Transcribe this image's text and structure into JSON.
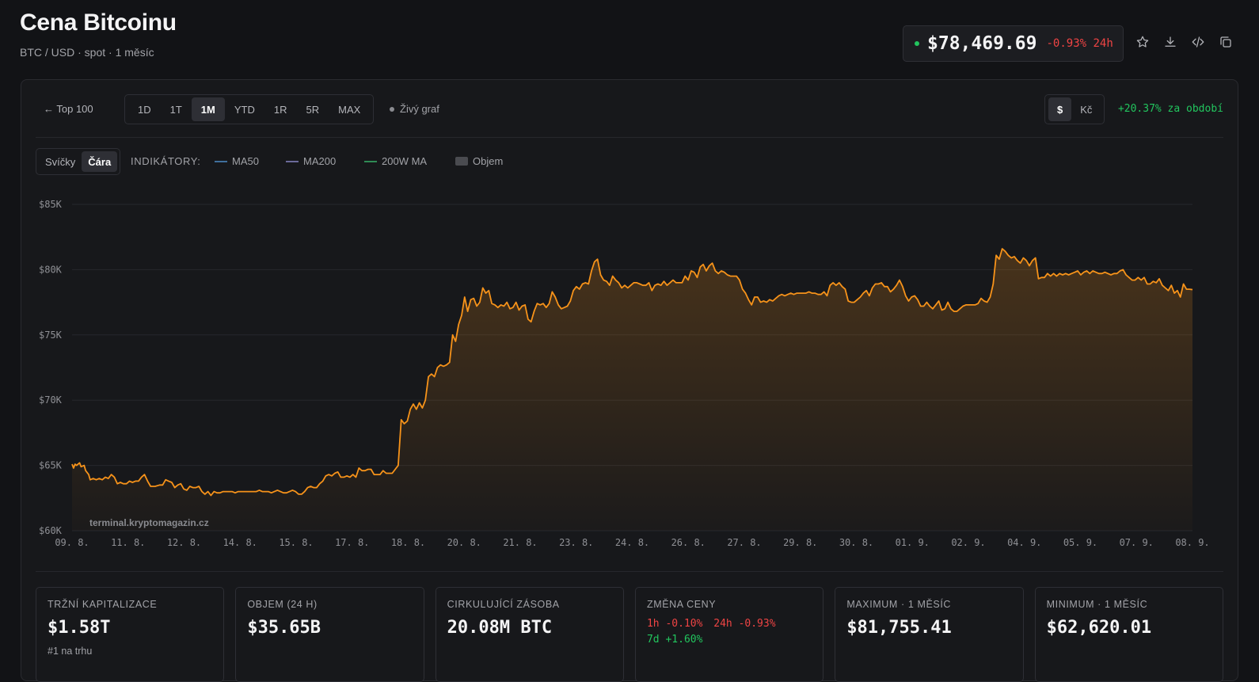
{
  "header": {
    "title": "Cena Bitcoinu",
    "subtitle": "BTC / USD · spot · 1 měsíc"
  },
  "price": {
    "value": "$78,469.69",
    "change": "-0.93% 24h"
  },
  "toolbar": {
    "back": "← Top 100",
    "ranges": [
      "1D",
      "1T",
      "1M",
      "YTD",
      "1R",
      "5R",
      "MAX"
    ],
    "active_range": "1M",
    "live": "Živý graf",
    "currencies": [
      "$",
      "Kč"
    ],
    "active_currency": "$",
    "period_change": "+20.37% za období"
  },
  "chart_toolbar": {
    "types": [
      "Svíčky",
      "Čára"
    ],
    "active_type": "Čára",
    "indicators_label": "INDIKÁTORY:",
    "indicators": [
      {
        "name": "MA50",
        "color": "#3f6f9c"
      },
      {
        "name": "MA200",
        "color": "#6b6a9a"
      },
      {
        "name": "200W MA",
        "color": "#2f8a55"
      },
      {
        "name": "Objem",
        "color": "#4a4b50"
      }
    ]
  },
  "chart_data": {
    "type": "area",
    "line_color": "#f7931a",
    "watermark": "terminal.kryptomagazin.cz",
    "y_ticks": [
      "$85K",
      "$80K",
      "$75K",
      "$70K",
      "$65K",
      "$60K"
    ],
    "ylim": [
      60000,
      85000
    ],
    "x_ticks": [
      "09. 8.",
      "11. 8.",
      "12. 8.",
      "14. 8.",
      "15. 8.",
      "17. 8.",
      "18. 8.",
      "20. 8.",
      "21. 8.",
      "23. 8.",
      "24. 8.",
      "26. 8.",
      "27. 8.",
      "29. 8.",
      "30. 8.",
      "01. 9.",
      "02. 9.",
      "04. 9.",
      "05. 9.",
      "07. 9.",
      "08. 9."
    ],
    "grid": true,
    "points": [
      [
        0,
        65100
      ],
      [
        1,
        64800
      ],
      [
        2,
        65100
      ],
      [
        3,
        65000
      ],
      [
        5,
        65200
      ],
      [
        6,
        64900
      ],
      [
        8,
        65000
      ],
      [
        9,
        64600
      ],
      [
        11,
        64300
      ],
      [
        12,
        63900
      ],
      [
        14,
        64000
      ],
      [
        16,
        63900
      ],
      [
        18,
        64000
      ],
      [
        20,
        63900
      ],
      [
        22,
        64100
      ],
      [
        24,
        64000
      ],
      [
        26,
        64300
      ],
      [
        28,
        64100
      ],
      [
        30,
        63600
      ],
      [
        32,
        63700
      ],
      [
        34,
        63600
      ],
      [
        36,
        63600
      ],
      [
        38,
        63800
      ],
      [
        40,
        63700
      ],
      [
        42,
        63800
      ],
      [
        44,
        63800
      ],
      [
        46,
        64100
      ],
      [
        48,
        64300
      ],
      [
        50,
        63800
      ],
      [
        52,
        63400
      ],
      [
        55,
        63400
      ],
      [
        58,
        63500
      ],
      [
        60,
        63500
      ],
      [
        62,
        63900
      ],
      [
        64,
        63800
      ],
      [
        66,
        63700
      ],
      [
        68,
        63300
      ],
      [
        70,
        63500
      ],
      [
        72,
        63600
      ],
      [
        74,
        63200
      ],
      [
        76,
        63100
      ],
      [
        78,
        63400
      ],
      [
        80,
        63300
      ],
      [
        82,
        63300
      ],
      [
        84,
        63400
      ],
      [
        86,
        63000
      ],
      [
        88,
        62800
      ],
      [
        90,
        63000
      ],
      [
        92,
        62700
      ],
      [
        94,
        63000
      ],
      [
        96,
        62900
      ],
      [
        98,
        62900
      ],
      [
        100,
        63000
      ],
      [
        102,
        63000
      ],
      [
        104,
        63000
      ],
      [
        106,
        63000
      ],
      [
        108,
        62900
      ],
      [
        110,
        63000
      ],
      [
        112,
        63000
      ],
      [
        114,
        63000
      ],
      [
        116,
        63000
      ],
      [
        118,
        63000
      ],
      [
        120,
        63000
      ],
      [
        122,
        63000
      ],
      [
        124,
        63100
      ],
      [
        126,
        63000
      ],
      [
        128,
        63000
      ],
      [
        130,
        63000
      ],
      [
        132,
        62900
      ],
      [
        134,
        63000
      ],
      [
        136,
        63100
      ],
      [
        138,
        63000
      ],
      [
        140,
        62900
      ],
      [
        142,
        62900
      ],
      [
        144,
        63000
      ],
      [
        146,
        63100
      ],
      [
        148,
        63000
      ],
      [
        150,
        62800
      ],
      [
        152,
        62800
      ],
      [
        154,
        63000
      ],
      [
        156,
        63300
      ],
      [
        158,
        63400
      ],
      [
        160,
        63300
      ],
      [
        162,
        63300
      ],
      [
        164,
        63600
      ],
      [
        166,
        63800
      ],
      [
        168,
        64200
      ],
      [
        170,
        64300
      ],
      [
        172,
        64200
      ],
      [
        174,
        64400
      ],
      [
        176,
        64500
      ],
      [
        178,
        64100
      ],
      [
        180,
        64100
      ],
      [
        182,
        64200
      ],
      [
        184,
        64100
      ],
      [
        186,
        64300
      ],
      [
        188,
        64100
      ],
      [
        190,
        64800
      ],
      [
        192,
        64600
      ],
      [
        194,
        64600
      ],
      [
        196,
        64700
      ],
      [
        198,
        64700
      ],
      [
        200,
        64300
      ],
      [
        202,
        64300
      ],
      [
        204,
        64300
      ],
      [
        206,
        64600
      ],
      [
        208,
        64400
      ],
      [
        210,
        64400
      ],
      [
        212,
        64400
      ],
      [
        214,
        64700
      ],
      [
        216,
        65000
      ],
      [
        218,
        68500
      ],
      [
        220,
        68200
      ],
      [
        222,
        68400
      ],
      [
        224,
        69300
      ],
      [
        226,
        69700
      ],
      [
        228,
        69300
      ],
      [
        230,
        69800
      ],
      [
        232,
        69400
      ],
      [
        234,
        70000
      ],
      [
        236,
        71800
      ],
      [
        238,
        72000
      ],
      [
        240,
        71800
      ],
      [
        242,
        72500
      ],
      [
        244,
        72700
      ],
      [
        246,
        72600
      ],
      [
        248,
        72700
      ],
      [
        250,
        72900
      ],
      [
        252,
        75000
      ],
      [
        254,
        74500
      ],
      [
        256,
        75800
      ],
      [
        258,
        76500
      ],
      [
        260,
        77900
      ],
      [
        262,
        76800
      ],
      [
        264,
        77700
      ],
      [
        266,
        77800
      ],
      [
        268,
        77200
      ],
      [
        270,
        77500
      ],
      [
        272,
        78600
      ],
      [
        274,
        78200
      ],
      [
        276,
        78400
      ],
      [
        278,
        77400
      ],
      [
        280,
        77300
      ],
      [
        282,
        77100
      ],
      [
        284,
        77300
      ],
      [
        286,
        77200
      ],
      [
        288,
        77500
      ],
      [
        290,
        77000
      ],
      [
        292,
        77100
      ],
      [
        294,
        77500
      ],
      [
        296,
        76900
      ],
      [
        298,
        77200
      ],
      [
        300,
        77300
      ],
      [
        302,
        76200
      ],
      [
        304,
        76000
      ],
      [
        306,
        76800
      ],
      [
        308,
        77400
      ],
      [
        310,
        77300
      ],
      [
        312,
        77400
      ],
      [
        314,
        77100
      ],
      [
        316,
        77400
      ],
      [
        318,
        78300
      ],
      [
        320,
        77900
      ],
      [
        322,
        77300
      ],
      [
        324,
        77000
      ],
      [
        326,
        77100
      ],
      [
        328,
        77200
      ],
      [
        330,
        77600
      ],
      [
        332,
        78400
      ],
      [
        334,
        78700
      ],
      [
        336,
        78500
      ],
      [
        338,
        78900
      ],
      [
        340,
        79000
      ],
      [
        342,
        78900
      ],
      [
        344,
        79900
      ],
      [
        346,
        80600
      ],
      [
        348,
        80800
      ],
      [
        350,
        79600
      ],
      [
        352,
        79200
      ],
      [
        354,
        79100
      ],
      [
        356,
        78800
      ],
      [
        358,
        79500
      ],
      [
        360,
        79200
      ],
      [
        362,
        79000
      ],
      [
        364,
        78600
      ],
      [
        366,
        78800
      ],
      [
        368,
        78600
      ],
      [
        370,
        78800
      ],
      [
        372,
        79000
      ],
      [
        374,
        79000
      ],
      [
        376,
        78900
      ],
      [
        378,
        78800
      ],
      [
        380,
        78800
      ],
      [
        382,
        79000
      ],
      [
        384,
        78400
      ],
      [
        386,
        78800
      ],
      [
        388,
        78900
      ],
      [
        390,
        78800
      ],
      [
        392,
        79100
      ],
      [
        394,
        78800
      ],
      [
        396,
        79000
      ],
      [
        398,
        79200
      ],
      [
        400,
        79000
      ],
      [
        402,
        79000
      ],
      [
        404,
        79000
      ],
      [
        406,
        79500
      ],
      [
        408,
        79200
      ],
      [
        410,
        79900
      ],
      [
        412,
        79800
      ],
      [
        414,
        79400
      ],
      [
        416,
        80200
      ],
      [
        418,
        80400
      ],
      [
        420,
        79900
      ],
      [
        422,
        80300
      ],
      [
        424,
        80500
      ],
      [
        426,
        79900
      ],
      [
        428,
        79700
      ],
      [
        430,
        79900
      ],
      [
        432,
        79800
      ],
      [
        434,
        79600
      ],
      [
        436,
        79500
      ],
      [
        438,
        79500
      ],
      [
        440,
        79500
      ],
      [
        442,
        79200
      ],
      [
        444,
        78500
      ],
      [
        446,
        78200
      ],
      [
        448,
        77700
      ],
      [
        450,
        77300
      ],
      [
        452,
        77900
      ],
      [
        454,
        77900
      ],
      [
        456,
        77500
      ],
      [
        458,
        77600
      ],
      [
        460,
        77500
      ],
      [
        462,
        77700
      ],
      [
        464,
        77600
      ],
      [
        466,
        77800
      ],
      [
        468,
        78000
      ],
      [
        470,
        78100
      ],
      [
        472,
        78000
      ],
      [
        474,
        78100
      ],
      [
        476,
        78200
      ],
      [
        478,
        78100
      ],
      [
        480,
        78200
      ],
      [
        482,
        78200
      ],
      [
        484,
        78200
      ],
      [
        486,
        78200
      ],
      [
        488,
        78300
      ],
      [
        490,
        78200
      ],
      [
        492,
        78200
      ],
      [
        494,
        78100
      ],
      [
        496,
        78100
      ],
      [
        498,
        78300
      ],
      [
        500,
        78000
      ],
      [
        502,
        78800
      ],
      [
        504,
        79000
      ],
      [
        506,
        78800
      ],
      [
        508,
        79000
      ],
      [
        510,
        78700
      ],
      [
        512,
        78500
      ],
      [
        514,
        77600
      ],
      [
        516,
        77500
      ],
      [
        518,
        77500
      ],
      [
        520,
        77700
      ],
      [
        522,
        77900
      ],
      [
        524,
        78200
      ],
      [
        526,
        78400
      ],
      [
        528,
        78000
      ],
      [
        530,
        78600
      ],
      [
        532,
        78900
      ],
      [
        534,
        78900
      ],
      [
        536,
        79000
      ],
      [
        538,
        78700
      ],
      [
        540,
        78700
      ],
      [
        542,
        78300
      ],
      [
        544,
        78500
      ],
      [
        546,
        78800
      ],
      [
        548,
        79200
      ],
      [
        550,
        78700
      ],
      [
        552,
        78000
      ],
      [
        554,
        77600
      ],
      [
        556,
        77900
      ],
      [
        558,
        78000
      ],
      [
        560,
        77700
      ],
      [
        562,
        77200
      ],
      [
        564,
        77200
      ],
      [
        566,
        77500
      ],
      [
        568,
        77200
      ],
      [
        570,
        77000
      ],
      [
        572,
        77300
      ],
      [
        574,
        77600
      ],
      [
        576,
        76900
      ],
      [
        578,
        77000
      ],
      [
        580,
        77500
      ],
      [
        582,
        77000
      ],
      [
        584,
        76800
      ],
      [
        586,
        76800
      ],
      [
        588,
        77000
      ],
      [
        590,
        77200
      ],
      [
        592,
        77300
      ],
      [
        594,
        77300
      ],
      [
        596,
        77300
      ],
      [
        598,
        77300
      ],
      [
        600,
        77400
      ],
      [
        602,
        77800
      ],
      [
        604,
        77600
      ],
      [
        606,
        77500
      ],
      [
        608,
        77900
      ],
      [
        610,
        78900
      ],
      [
        612,
        81100
      ],
      [
        614,
        80800
      ],
      [
        616,
        81600
      ],
      [
        618,
        81400
      ],
      [
        620,
        81100
      ],
      [
        622,
        80900
      ],
      [
        624,
        81000
      ],
      [
        626,
        80700
      ],
      [
        628,
        80500
      ],
      [
        630,
        80900
      ],
      [
        632,
        80700
      ],
      [
        634,
        80300
      ],
      [
        636,
        80700
      ],
      [
        638,
        80900
      ],
      [
        640,
        79300
      ],
      [
        642,
        79400
      ],
      [
        644,
        79400
      ],
      [
        646,
        79700
      ],
      [
        648,
        79500
      ],
      [
        650,
        79700
      ],
      [
        652,
        79500
      ],
      [
        654,
        79700
      ],
      [
        656,
        79600
      ],
      [
        658,
        79700
      ],
      [
        660,
        79600
      ],
      [
        662,
        79700
      ],
      [
        664,
        79800
      ],
      [
        666,
        79900
      ],
      [
        668,
        79600
      ],
      [
        670,
        79800
      ],
      [
        672,
        79900
      ],
      [
        674,
        79700
      ],
      [
        676,
        79900
      ],
      [
        678,
        79800
      ],
      [
        680,
        79700
      ],
      [
        682,
        79700
      ],
      [
        684,
        79800
      ],
      [
        686,
        79700
      ],
      [
        688,
        79600
      ],
      [
        690,
        79700
      ],
      [
        692,
        79700
      ],
      [
        694,
        79900
      ],
      [
        696,
        80000
      ],
      [
        698,
        79600
      ],
      [
        700,
        79400
      ],
      [
        702,
        79200
      ],
      [
        704,
        79200
      ],
      [
        706,
        79400
      ],
      [
        708,
        79200
      ],
      [
        710,
        79400
      ],
      [
        712,
        78900
      ],
      [
        714,
        78900
      ],
      [
        716,
        79100
      ],
      [
        718,
        79000
      ],
      [
        720,
        79300
      ],
      [
        722,
        78800
      ],
      [
        724,
        78600
      ],
      [
        726,
        78400
      ],
      [
        728,
        78800
      ],
      [
        730,
        78200
      ],
      [
        732,
        78400
      ],
      [
        734,
        77900
      ],
      [
        736,
        78900
      ],
      [
        738,
        78500
      ],
      [
        740,
        78500
      ],
      [
        742,
        78469
      ]
    ],
    "x_max": 742
  },
  "stats": [
    {
      "label": "TRŽNÍ KAPITALIZACE",
      "value": "$1.58T",
      "sub": "#1 na trhu"
    },
    {
      "label": "OBJEM (24 H)",
      "value": "$35.65B"
    },
    {
      "label": "CIRKULUJÍCÍ ZÁSOBA",
      "value": "20.08M BTC"
    },
    {
      "label": "ZMĚNA CENY",
      "changes": [
        {
          "label": "1h",
          "value": "-0.10%",
          "dir": "neg"
        },
        {
          "label": "24h",
          "value": "-0.93%",
          "dir": "neg"
        },
        {
          "label": "7d",
          "value": "+1.60%",
          "dir": "pos"
        }
      ]
    },
    {
      "label": "MAXIMUM · 1 MĚSÍC",
      "value": "$81,755.41"
    },
    {
      "label": "MINIMUM · 1 MĚSÍC",
      "value": "$62,620.01"
    }
  ],
  "icons": [
    "star-icon",
    "download-icon",
    "code-icon",
    "copy-icon"
  ]
}
